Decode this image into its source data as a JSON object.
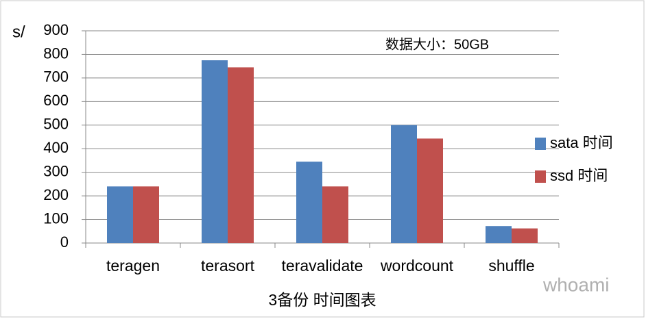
{
  "chart_data": {
    "type": "bar",
    "y_label": "s/",
    "annotation": "数据大小：50GB",
    "x_label": "3备份 时间图表",
    "watermark": "whoami",
    "categories": [
      "teragen",
      "terasort",
      "teravalidate",
      "wordcount",
      "shuffle"
    ],
    "series": [
      {
        "name": "sata 时间",
        "color": "#4f81bd",
        "values": [
          240,
          775,
          345,
          500,
          72
        ]
      },
      {
        "name": "ssd 时间",
        "color": "#c0504d",
        "values": [
          240,
          745,
          240,
          443,
          62
        ]
      }
    ],
    "ylim": [
      0,
      900
    ],
    "yticks": [
      0,
      100,
      200,
      300,
      400,
      500,
      600,
      700,
      800,
      900
    ],
    "grid": true,
    "legend": "right"
  }
}
